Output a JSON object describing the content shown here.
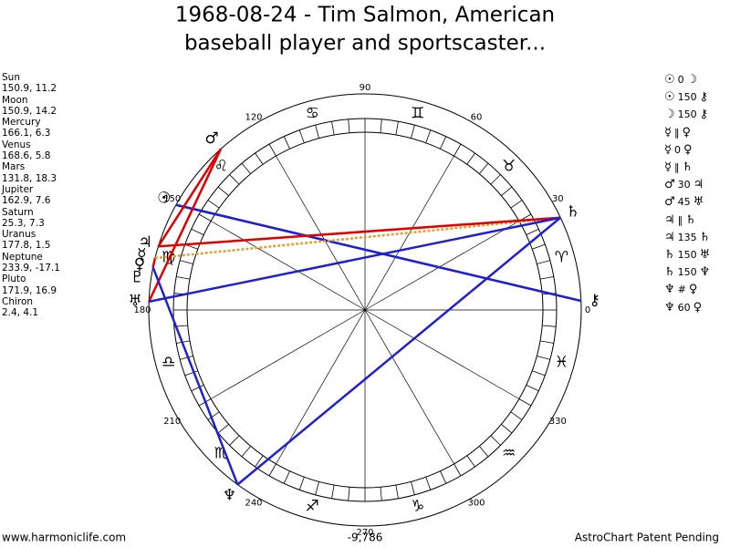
{
  "title": [
    "1968-08-24 - Tim Salmon, American",
    "baseball player and sportscaster..."
  ],
  "planets": [
    {
      "name": "Sun",
      "glyph": "☉",
      "coords": "150.9, 11.2"
    },
    {
      "name": "Moon",
      "glyph": "☽",
      "coords": "150.9, 14.2"
    },
    {
      "name": "Mercury",
      "glyph": "☿",
      "coords": "166.1, 6.3"
    },
    {
      "name": "Venus",
      "glyph": "♀",
      "coords": "168.6, 5.8"
    },
    {
      "name": "Mars",
      "glyph": "♂",
      "coords": "131.8, 18.3"
    },
    {
      "name": "Jupiter",
      "glyph": "♃",
      "coords": "162.9, 7.6"
    },
    {
      "name": "Saturn",
      "glyph": "♄",
      "coords": "25.3, 7.3"
    },
    {
      "name": "Uranus",
      "glyph": "♅",
      "coords": "177.8, 1.5"
    },
    {
      "name": "Neptune",
      "glyph": "♆",
      "coords": "233.9, -17.1"
    },
    {
      "name": "Pluto",
      "glyph": "♇",
      "coords": "171.9, 16.9"
    },
    {
      "name": "Chiron",
      "glyph": "⚷",
      "coords": "2.4, 4.1"
    }
  ],
  "aspects": [
    {
      "p1": "☉",
      "aspect": "0",
      "p2": "☽",
      "color": "#e00000",
      "style": "solid"
    },
    {
      "p1": "☉",
      "aspect": "150",
      "p2": "⚷",
      "color": "#2020d0",
      "style": "solid"
    },
    {
      "p1": "☽",
      "aspect": "150",
      "p2": "⚷",
      "color": "#2020d0",
      "style": "solid"
    },
    {
      "p1": "☿",
      "aspect": "‖",
      "p2": "♀",
      "color": "#e0a030",
      "style": "none"
    },
    {
      "p1": "☿",
      "aspect": "0",
      "p2": "♀",
      "color": "#e00000",
      "style": "solid"
    },
    {
      "p1": "☿",
      "aspect": "‖",
      "p2": "♄",
      "color": "#e0a030",
      "style": "dotted"
    },
    {
      "p1": "♂",
      "aspect": "30",
      "p2": "♃",
      "color": "#e00000",
      "style": "solid"
    },
    {
      "p1": "♂",
      "aspect": "45",
      "p2": "♅",
      "color": "#e00000",
      "style": "solid"
    },
    {
      "p1": "♃",
      "aspect": "‖",
      "p2": "♄",
      "color": "#e0a030",
      "style": "dotted"
    },
    {
      "p1": "♃",
      "aspect": "135",
      "p2": "♄",
      "color": "#e00000",
      "style": "solid"
    },
    {
      "p1": "♄",
      "aspect": "150",
      "p2": "♅",
      "color": "#2020d0",
      "style": "solid"
    },
    {
      "p1": "♄",
      "aspect": "150",
      "p2": "♆",
      "color": "#2020d0",
      "style": "solid"
    },
    {
      "p1": "♆",
      "aspect": "#",
      "p2": "♀",
      "color": "#e0a030",
      "style": "none"
    },
    {
      "p1": "♆",
      "aspect": "60",
      "p2": "♀",
      "color": "#2020d0",
      "style": "solid"
    }
  ],
  "degree_labels": [
    0,
    30,
    60,
    90,
    120,
    150,
    180,
    210,
    240,
    270,
    300,
    330
  ],
  "zodiac": [
    "♈",
    "♉",
    "♊",
    "♋",
    "♌",
    "♍",
    "♎",
    "♏",
    "♐",
    "♑",
    "♒",
    "♓"
  ],
  "footer": {
    "left": "www.harmoniclife.com",
    "center": "-9,786",
    "right": "AstroChart Patent Pending"
  }
}
